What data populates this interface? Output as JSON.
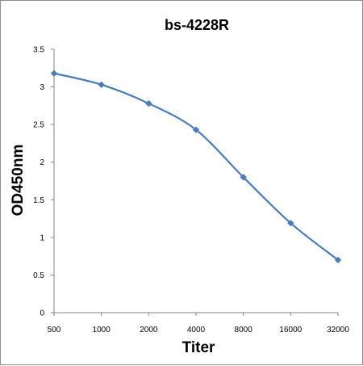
{
  "chart_data": {
    "type": "line",
    "title": "bs-4228R",
    "xlabel": "Titer",
    "ylabel": "OD450nm",
    "categories": [
      "500",
      "1000",
      "2000",
      "4000",
      "8000",
      "16000",
      "32000"
    ],
    "series": [
      {
        "values": [
          3.18,
          3.03,
          2.78,
          2.43,
          1.8,
          1.19,
          0.7
        ]
      }
    ],
    "ylim": [
      0,
      3.5
    ],
    "yticks": [
      "0",
      "0.5",
      "1",
      "1.5",
      "2",
      "2.5",
      "3",
      "3.5"
    ],
    "grid": false,
    "legend": "none",
    "smooth": true,
    "marker": "diamond",
    "line_color": "#4a7ebb"
  }
}
